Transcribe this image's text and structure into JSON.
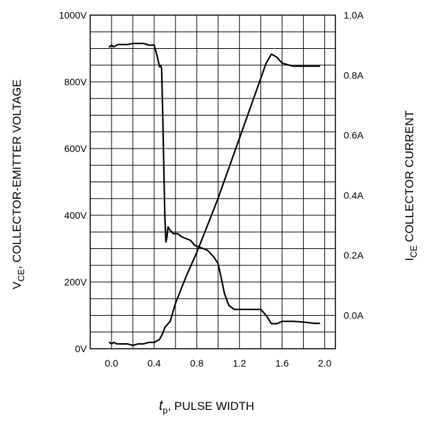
{
  "chart_data": {
    "type": "line",
    "xlabel_italic": "t",
    "xlabel_sub": "p",
    "xlabel_rest": ", PULSE WIDTH",
    "ylabel_left_main": "V",
    "ylabel_left_sub": "CE",
    "ylabel_left_rest": ", COLLECTOR-EMITTER VOLTAGE",
    "ylabel_right_main": "I",
    "ylabel_right_sub": "CE",
    "ylabel_right_rest": " COLLECTOR CURRENT",
    "x_ticks": [
      "0.0",
      "0.4",
      "0.8",
      "1.2",
      "1.6",
      "2.0"
    ],
    "x_tick_values": [
      0.0,
      0.4,
      0.8,
      1.2,
      1.6,
      2.0
    ],
    "xlim": [
      -0.2,
      2.1
    ],
    "y_left_ticks": [
      "0V",
      "200V",
      "400V",
      "600V",
      "800V",
      "1000V"
    ],
    "y_left_tick_values": [
      0,
      200,
      400,
      600,
      800,
      1000
    ],
    "ylim_left": [
      0,
      1000
    ],
    "y_right_ticks": [
      "0.0A",
      "0.2A",
      "0.4A",
      "0.6A",
      "0.8A",
      "1.0A"
    ],
    "y_right_tick_values": [
      0.0,
      0.2,
      0.4,
      0.6,
      0.8,
      1.0
    ],
    "right_axis_zero_at_left_value": 100,
    "right_axis_scale_V_per_A": 900,
    "grid": true,
    "series": [
      {
        "axis": "left",
        "x": [
          -0.02,
          0.0,
          0.02,
          0.06,
          0.1,
          0.15,
          0.2,
          0.25,
          0.3,
          0.35,
          0.4,
          0.43,
          0.45,
          0.46,
          0.47,
          0.48,
          0.49,
          0.5,
          0.51,
          0.52,
          0.53,
          0.55,
          0.58,
          0.62,
          0.66,
          0.7,
          0.74,
          0.78,
          0.82,
          0.86,
          0.9,
          0.93,
          0.96,
          1.0,
          1.03,
          1.06,
          1.1,
          1.15,
          1.2,
          1.3,
          1.4,
          1.45,
          1.5,
          1.55,
          1.6,
          1.7,
          1.8,
          1.9,
          1.95
        ],
        "y": [
          905,
          910,
          905,
          912,
          912,
          912,
          915,
          915,
          915,
          910,
          910,
          875,
          845,
          850,
          840,
          700,
          550,
          400,
          320,
          335,
          365,
          355,
          345,
          345,
          335,
          330,
          325,
          310,
          305,
          300,
          295,
          285,
          275,
          255,
          210,
          165,
          130,
          118,
          118,
          118,
          118,
          100,
          75,
          75,
          82,
          82,
          80,
          76,
          76
        ]
      },
      {
        "axis": "right",
        "x": [
          -0.02,
          0.0,
          0.02,
          0.05,
          0.1,
          0.15,
          0.2,
          0.25,
          0.3,
          0.35,
          0.4,
          0.45,
          0.48,
          0.5,
          0.55,
          0.6,
          0.7,
          0.8,
          0.9,
          1.0,
          1.1,
          1.2,
          1.3,
          1.4,
          1.45,
          1.5,
          1.55,
          1.6,
          1.7,
          1.8,
          1.9,
          1.95
        ],
        "y": [
          -0.09,
          -0.095,
          -0.09,
          -0.095,
          -0.095,
          -0.095,
          -0.1,
          -0.095,
          -0.095,
          -0.09,
          -0.09,
          -0.08,
          -0.06,
          -0.04,
          -0.02,
          0.04,
          0.13,
          0.21,
          0.3,
          0.39,
          0.49,
          0.59,
          0.69,
          0.79,
          0.84,
          0.87,
          0.86,
          0.84,
          0.83,
          0.83,
          0.83,
          0.83
        ]
      }
    ]
  }
}
